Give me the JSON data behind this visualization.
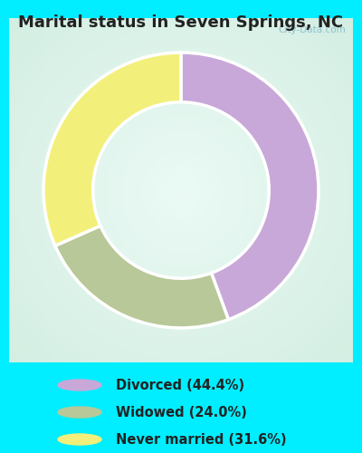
{
  "title": "Marital status in Seven Springs, NC",
  "title_color": "#222222",
  "title_fontsize": 13,
  "background_color": "#00EEFF",
  "chart_bg_color": "#ddf0e8",
  "slices": [
    {
      "label": "Divorced (44.4%)",
      "value": 44.4,
      "color": "#C8A8D8"
    },
    {
      "label": "Widowed (24.0%)",
      "value": 24.0,
      "color": "#B8C898"
    },
    {
      "label": "Never married (31.6%)",
      "value": 31.6,
      "color": "#F2F07A"
    }
  ],
  "donut_width": 0.36,
  "start_angle": 90,
  "legend_fontsize": 10.5,
  "watermark": "City-Data.com",
  "watermark_color": "#88BBCC",
  "edge_color": "#ffffff",
  "edge_linewidth": 2.5
}
